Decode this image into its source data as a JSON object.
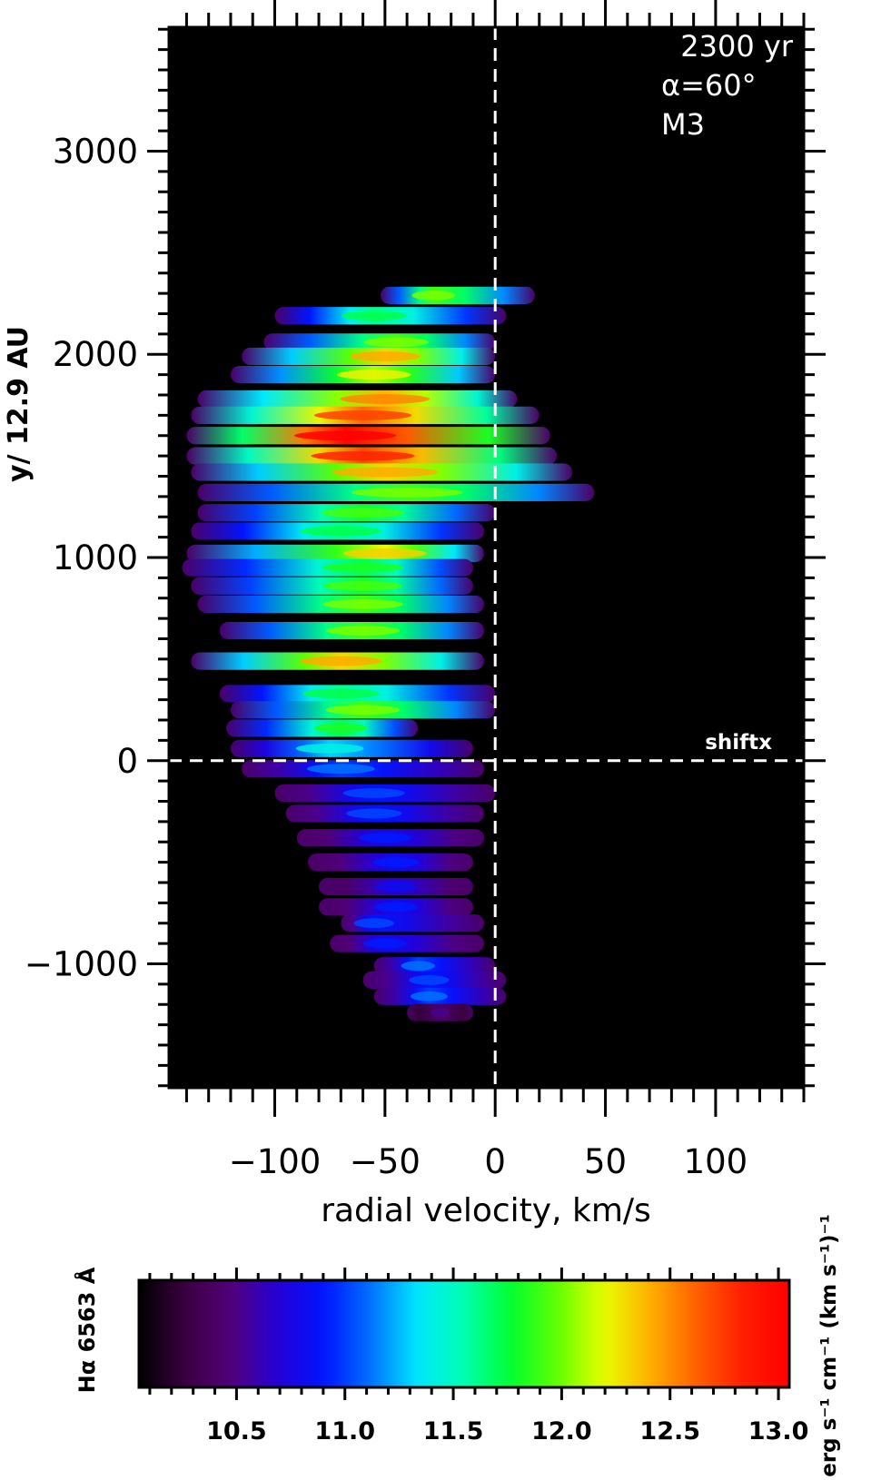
{
  "chart_data": [
    {
      "type": "heatmap",
      "title": "",
      "xlabel": "radial velocity, km/s",
      "ylabel": "y/ 12.9 AU",
      "xlim": [
        -148,
        140
      ],
      "ylim": [
        -1610,
        3610
      ],
      "x_ticks": [
        -100,
        -50,
        0,
        50,
        100
      ],
      "x_tick_labels": [
        "−100",
        "−50",
        "0",
        "50",
        "100"
      ],
      "y_ticks": [
        -1000,
        0,
        1000,
        2000,
        3000
      ],
      "y_tick_labels": [
        "−1000",
        "0",
        "1000",
        "2000",
        "3000"
      ],
      "annotations": [
        "2300 yr",
        "α=60°",
        "M3",
        "shiftx"
      ],
      "reference_lines": {
        "x": 0,
        "y": 0,
        "style": "dashed"
      },
      "background": "#000000",
      "colorscale": "log10 intensity",
      "emission_bands": [
        {
          "y": 2290,
          "x_min": -52,
          "x_max": 18,
          "x_peak": -28,
          "level": 11.9
        },
        {
          "y": 2190,
          "x_min": -100,
          "x_max": 5,
          "x_peak": -55,
          "level": 11.6
        },
        {
          "y": 2060,
          "x_min": -105,
          "x_max": 0,
          "x_peak": -45,
          "level": 11.9
        },
        {
          "y": 1990,
          "x_min": -115,
          "x_max": 0,
          "x_peak": -50,
          "level": 12.3
        },
        {
          "y": 1900,
          "x_min": -120,
          "x_max": 0,
          "x_peak": -55,
          "level": 12.1
        },
        {
          "y": 1780,
          "x_min": -135,
          "x_max": 10,
          "x_peak": -50,
          "level": 12.4
        },
        {
          "y": 1700,
          "x_min": -138,
          "x_max": 20,
          "x_peak": -60,
          "level": 12.6
        },
        {
          "y": 1600,
          "x_min": -140,
          "x_max": 25,
          "x_peak": -68,
          "level": 13.0
        },
        {
          "y": 1500,
          "x_min": -140,
          "x_max": 28,
          "x_peak": -60,
          "level": 12.7
        },
        {
          "y": 1420,
          "x_min": -138,
          "x_max": 35,
          "x_peak": -50,
          "level": 12.3
        },
        {
          "y": 1320,
          "x_min": -135,
          "x_max": 45,
          "x_peak": -40,
          "level": 11.9
        },
        {
          "y": 1220,
          "x_min": -135,
          "x_max": 0,
          "x_peak": -60,
          "level": 11.8
        },
        {
          "y": 1130,
          "x_min": -138,
          "x_max": -5,
          "x_peak": -70,
          "level": 11.6
        },
        {
          "y": 1020,
          "x_min": -140,
          "x_max": -5,
          "x_peak": -50,
          "level": 12.2
        },
        {
          "y": 950,
          "x_min": -142,
          "x_max": -10,
          "x_peak": -60,
          "level": 11.7
        },
        {
          "y": 860,
          "x_min": -138,
          "x_max": -10,
          "x_peak": -60,
          "level": 11.8
        },
        {
          "y": 770,
          "x_min": -135,
          "x_max": -5,
          "x_peak": -60,
          "level": 11.9
        },
        {
          "y": 640,
          "x_min": -125,
          "x_max": -5,
          "x_peak": -60,
          "level": 11.9
        },
        {
          "y": 490,
          "x_min": -138,
          "x_max": -5,
          "x_peak": -70,
          "level": 12.3
        },
        {
          "y": 330,
          "x_min": -125,
          "x_max": 0,
          "x_peak": -70,
          "level": 11.6
        },
        {
          "y": 250,
          "x_min": -120,
          "x_max": 0,
          "x_peak": -60,
          "level": 11.9
        },
        {
          "y": 160,
          "x_min": -122,
          "x_max": -35,
          "x_peak": -70,
          "level": 11.7
        },
        {
          "y": 60,
          "x_min": -120,
          "x_max": -10,
          "x_peak": -75,
          "level": 11.3
        },
        {
          "y": -40,
          "x_min": -115,
          "x_max": -5,
          "x_peak": -70,
          "level": 11.0
        },
        {
          "y": -160,
          "x_min": -100,
          "x_max": 0,
          "x_peak": -55,
          "level": 10.9
        },
        {
          "y": -260,
          "x_min": -95,
          "x_max": -5,
          "x_peak": -55,
          "level": 10.9
        },
        {
          "y": -380,
          "x_min": -90,
          "x_max": -5,
          "x_peak": -50,
          "level": 10.8
        },
        {
          "y": -500,
          "x_min": -85,
          "x_max": -10,
          "x_peak": -45,
          "level": 10.8
        },
        {
          "y": -620,
          "x_min": -80,
          "x_max": -10,
          "x_peak": -45,
          "level": 10.7
        },
        {
          "y": -720,
          "x_min": -80,
          "x_max": -10,
          "x_peak": -45,
          "level": 10.8
        },
        {
          "y": -800,
          "x_min": -70,
          "x_max": -5,
          "x_peak": -55,
          "level": 10.9
        },
        {
          "y": -900,
          "x_min": -75,
          "x_max": -5,
          "x_peak": -50,
          "level": 10.8
        },
        {
          "y": -1010,
          "x_min": -55,
          "x_max": 0,
          "x_peak": -35,
          "level": 11.0
        },
        {
          "y": -1080,
          "x_min": -60,
          "x_max": 5,
          "x_peak": -30,
          "level": 10.9
        },
        {
          "y": -1160,
          "x_min": -55,
          "x_max": 5,
          "x_peak": -30,
          "level": 11.0
        },
        {
          "y": -1240,
          "x_min": -40,
          "x_max": -10,
          "x_peak": -25,
          "level": 10.4
        }
      ]
    },
    {
      "type": "colorbar",
      "label": "Hα 6563 Å",
      "units": "erg s⁻¹ cm⁻¹ (km s⁻¹)⁻¹",
      "range": [
        10.05,
        13.05
      ],
      "ticks": [
        10.5,
        11.0,
        11.5,
        12.0,
        12.5,
        13.0
      ],
      "tick_labels": [
        "10.5",
        "11.0",
        "11.5",
        "12.0",
        "12.5",
        "13.0"
      ],
      "colormap": [
        "#000000",
        "#3a0040",
        "#52007a",
        "#2400d8",
        "#0014ff",
        "#0072ff",
        "#00e8ff",
        "#00ffb0",
        "#00ff30",
        "#60ff00",
        "#e8ff00",
        "#ffb000",
        "#ff6000",
        "#ff1e00",
        "#ff0000"
      ]
    }
  ]
}
